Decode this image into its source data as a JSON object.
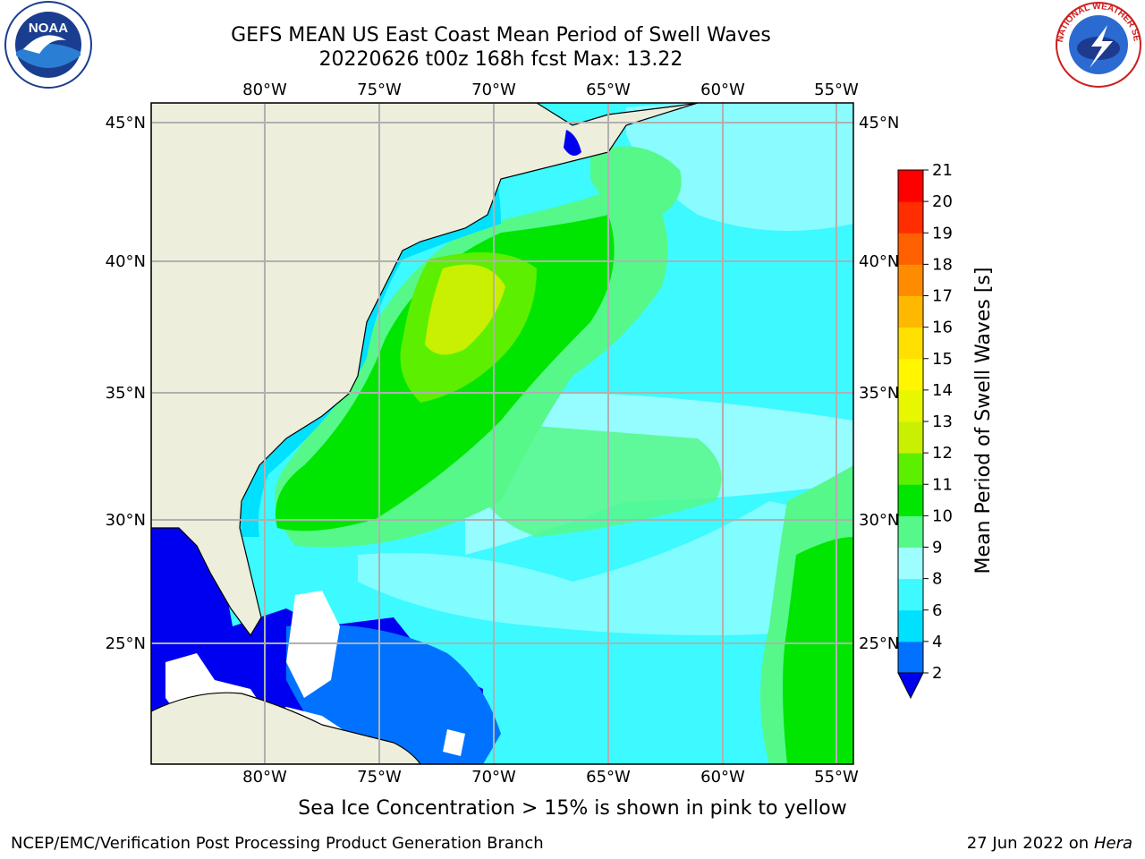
{
  "title": {
    "line1": "GEFS MEAN US East Coast Mean Period of Swell Waves",
    "line2": "20220626 t00z 168h fcst   Max: 13.22"
  },
  "logos": {
    "left": {
      "icon": "noaa-logo",
      "text": "NOAA"
    },
    "right": {
      "icon": "nws-logo",
      "text": "NATIONAL WEATHER SERVICE"
    }
  },
  "map": {
    "lon_labels": [
      "80°W",
      "75°W",
      "70°W",
      "65°W",
      "60°W",
      "55°W"
    ],
    "lat_labels": [
      "45°N",
      "40°N",
      "35°N",
      "30°N",
      "25°N"
    ],
    "land_color": "#eeeedc",
    "grid_color": "#b0b0b0",
    "no_data_color": "#ffffff"
  },
  "colorbar": {
    "label": "Mean Period of Swell Waves [s]",
    "ticks": [
      "2",
      "4",
      "6",
      "8",
      "9",
      "10",
      "11",
      "12",
      "13",
      "14",
      "15",
      "16",
      "17",
      "18",
      "19",
      "20",
      "21"
    ],
    "colors": [
      "#0072ff",
      "#00e0ff",
      "#3cfaff",
      "#9efdff",
      "#56f88a",
      "#00e600",
      "#5cef00",
      "#c8f000",
      "#e6f700",
      "#fff600",
      "#ffe000",
      "#ffb800",
      "#ff8c00",
      "#ff6000",
      "#ff2d00",
      "#ff0000"
    ],
    "underflow_color": "#0000f0"
  },
  "footer": {
    "caption": "Sea Ice Concentration > 15% is shown in pink to yellow",
    "credit": "NCEP/EMC/Verification Post Processing Product Generation Branch",
    "date": "27 Jun 2022 on",
    "host": "Hera"
  }
}
